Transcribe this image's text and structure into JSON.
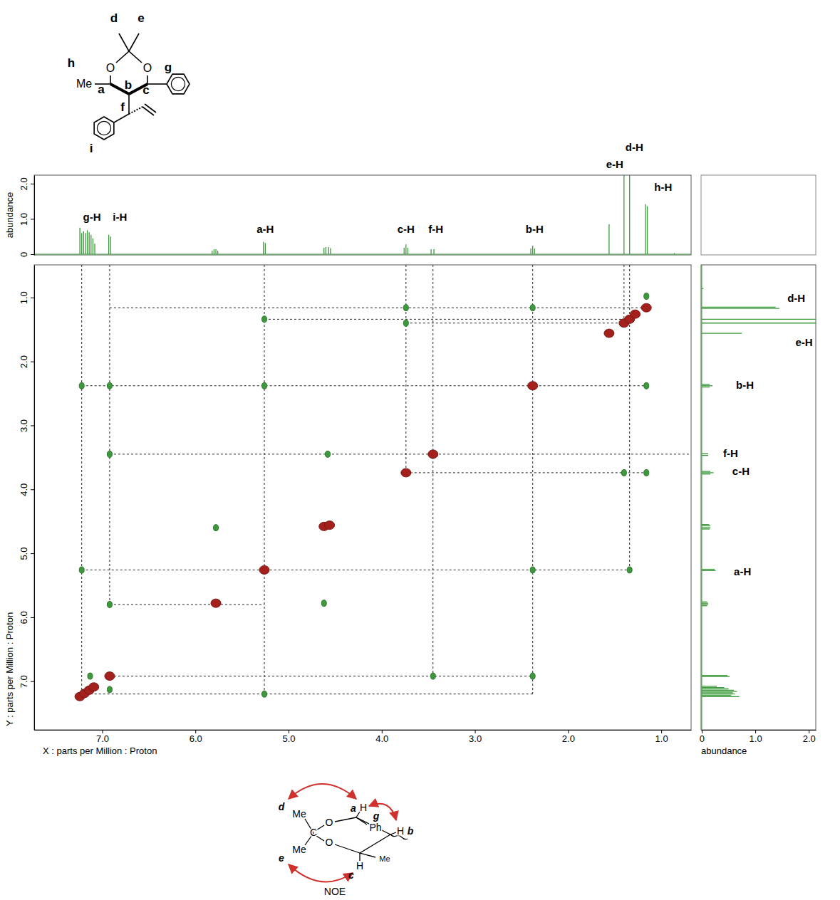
{
  "chart_data": [
    {
      "type": "spectrum",
      "ylabel": "abundance",
      "tick_labels": "y",
      "color": "#3c9a3c",
      "xlim": [
        7.73,
        0.68
      ],
      "ylim": [
        -0.02,
        2.24
      ],
      "yticks": [
        0,
        {
          "value": 1,
          "label": "1.0"
        },
        {
          "value": 2,
          "label": "2.0"
        }
      ],
      "x": [
        7.24,
        7.22,
        7.2,
        7.18,
        7.16,
        7.14,
        7.12,
        7.1,
        7.08,
        6.93,
        6.91,
        5.82,
        5.8,
        5.78,
        5.76,
        5.27,
        5.25,
        4.62,
        4.6,
        4.57,
        4.55,
        3.76,
        3.74,
        3.72,
        3.47,
        3.44,
        2.4,
        2.38,
        2.36,
        1.56,
        1.4,
        1.34,
        1.17,
        1.15,
        0.86
      ],
      "values": [
        0.75,
        0.6,
        0.65,
        0.6,
        0.68,
        0.62,
        0.55,
        0.45,
        0.3,
        0.55,
        0.5,
        0.1,
        0.14,
        0.14,
        0.1,
        0.35,
        0.32,
        0.18,
        0.2,
        0.2,
        0.17,
        0.18,
        0.28,
        0.18,
        0.14,
        0.14,
        0.16,
        0.24,
        0.16,
        0.85,
        2.24,
        2.24,
        1.42,
        1.36,
        0.03
      ],
      "annotations": [
        {
          "text": "g-H",
          "x": 7.11,
          "y": 0.95
        },
        {
          "text": "i-H",
          "x": 6.81,
          "y": 0.95
        },
        {
          "text": "a-H",
          "x": 5.25,
          "y": 0.6
        },
        {
          "text": "c-H",
          "x": 3.74,
          "y": 0.6
        },
        {
          "text": "f-H",
          "x": 3.42,
          "y": 0.6
        },
        {
          "text": "b-H",
          "x": 2.36,
          "y": 0.6
        },
        {
          "text": "e-H",
          "x": 1.5,
          "y": 2.44
        },
        {
          "text": "d-H",
          "x": 1.29,
          "y": 2.93
        },
        {
          "text": "h-H",
          "x": 0.98,
          "y": 1.8
        }
      ]
    },
    {
      "type": "scatter",
      "marker": "ellipse",
      "xlabel": "X : parts per Million : Proton",
      "ylabel": "Y : parts per Million : Proton",
      "xlim": [
        7.73,
        0.68
      ],
      "ylim": [
        0.49,
        7.76
      ],
      "xticks": [
        {
          "value": 7,
          "label": "7.0"
        },
        {
          "value": 6,
          "label": "6.0"
        },
        {
          "value": 5,
          "label": "5.0"
        },
        {
          "value": 4,
          "label": "4.0"
        },
        {
          "value": 3,
          "label": "3.0"
        },
        {
          "value": 2,
          "label": "2.0"
        },
        {
          "value": 1,
          "label": "1.0"
        }
      ],
      "yticks": [
        {
          "value": 1,
          "label": "1.0"
        },
        {
          "value": 2,
          "label": "2.0"
        },
        {
          "value": 3,
          "label": "3.0"
        },
        {
          "value": 4,
          "label": "4.0"
        },
        {
          "value": 5,
          "label": "5.0"
        },
        {
          "value": 6,
          "label": "6.0"
        },
        {
          "value": 7,
          "label": "7.0"
        }
      ],
      "series": [
        {
          "color": "#a3201c",
          "x": [
            7.24,
            7.19,
            7.14,
            7.09,
            6.92,
            5.78,
            5.26,
            4.62,
            4.56,
            3.74,
            3.45,
            2.38,
            1.56,
            1.4,
            1.34,
            1.28,
            1.16
          ],
          "values": [
            7.24,
            7.19,
            7.14,
            7.09,
            6.92,
            5.78,
            5.26,
            4.58,
            4.56,
            3.74,
            3.45,
            2.38,
            1.56,
            1.4,
            1.34,
            1.26,
            1.16
          ]
        },
        {
          "color": "#3c9a3c",
          "x": [
            7.22,
            7.22,
            6.92,
            6.92,
            6.92,
            7.13,
            6.92,
            5.26,
            5.26,
            5.26,
            4.58,
            5.78,
            4.62,
            3.74,
            3.74,
            3.45,
            2.38,
            2.38,
            2.38,
            1.4,
            1.34,
            1.16,
            1.16,
            1.16
          ],
          "values": [
            2.38,
            5.26,
            2.38,
            3.45,
            5.8,
            6.92,
            7.13,
            1.34,
            2.38,
            7.2,
            3.45,
            4.6,
            5.78,
            1.16,
            1.4,
            6.92,
            1.16,
            5.26,
            6.92,
            3.74,
            5.26,
            2.38,
            3.74,
            0.98
          ]
        }
      ],
      "guide_lines": [
        {
          "x": [
            7.22,
            7.22
          ],
          "y": [
            0.49,
            7.2
          ]
        },
        {
          "x": [
            6.92,
            6.92
          ],
          "y": [
            0.49,
            5.8
          ]
        },
        {
          "x": [
            5.26,
            5.26
          ],
          "y": [
            0.49,
            7.2
          ]
        },
        {
          "x": [
            3.74,
            3.74
          ],
          "y": [
            0.49,
            3.74
          ]
        },
        {
          "x": [
            3.45,
            3.45
          ],
          "y": [
            0.49,
            6.92
          ]
        },
        {
          "x": [
            2.38,
            2.38
          ],
          "y": [
            0.49,
            7.2
          ]
        },
        {
          "x": [
            1.4,
            1.4
          ],
          "y": [
            0.49,
            1.4
          ]
        },
        {
          "x": [
            1.34,
            1.34
          ],
          "y": [
            0.49,
            5.26
          ]
        },
        {
          "x": [
            6.92,
            1.16
          ],
          "y": [
            1.16,
            1.16
          ]
        },
        {
          "x": [
            5.26,
            1.34
          ],
          "y": [
            1.34,
            1.34
          ]
        },
        {
          "x": [
            3.74,
            1.4
          ],
          "y": [
            1.4,
            1.4
          ]
        },
        {
          "x": [
            7.22,
            1.16
          ],
          "y": [
            2.38,
            2.38
          ]
        },
        {
          "x": [
            6.92,
            0.68
          ],
          "y": [
            3.45,
            3.45
          ]
        },
        {
          "x": [
            3.74,
            1.16
          ],
          "y": [
            3.74,
            3.74
          ]
        },
        {
          "x": [
            7.22,
            1.34
          ],
          "y": [
            5.26,
            5.26
          ]
        },
        {
          "x": [
            6.92,
            5.26
          ],
          "y": [
            5.8,
            5.8
          ]
        },
        {
          "x": [
            6.92,
            2.38
          ],
          "y": [
            6.92,
            6.92
          ]
        },
        {
          "x": [
            7.22,
            2.38
          ],
          "y": [
            7.2,
            7.2
          ]
        }
      ]
    },
    {
      "type": "spectrum",
      "orientation": "horizontal",
      "xlabel": "abundance",
      "tick_labels": "x",
      "color": "#3c9a3c",
      "xlim": [
        -0.013,
        2.13
      ],
      "ylim": [
        0.49,
        7.76
      ],
      "xticks": [
        0,
        {
          "value": 1,
          "label": "1.0"
        },
        {
          "value": 2,
          "label": "2.0"
        }
      ],
      "y": [
        7.24,
        7.22,
        7.2,
        7.18,
        7.16,
        7.14,
        7.12,
        7.1,
        7.08,
        6.93,
        6.91,
        5.82,
        5.8,
        5.78,
        5.76,
        5.27,
        5.25,
        4.62,
        4.6,
        4.57,
        4.55,
        3.76,
        3.74,
        3.72,
        3.47,
        3.44,
        2.4,
        2.38,
        2.36,
        1.56,
        1.4,
        1.34,
        1.17,
        1.15,
        0.86
      ],
      "values": [
        0.7,
        0.55,
        0.62,
        0.58,
        0.66,
        0.6,
        0.5,
        0.42,
        0.28,
        0.52,
        0.48,
        0.1,
        0.12,
        0.12,
        0.1,
        0.26,
        0.24,
        0.15,
        0.16,
        0.16,
        0.14,
        0.16,
        0.22,
        0.16,
        0.12,
        0.12,
        0.15,
        0.2,
        0.15,
        0.75,
        2.13,
        2.13,
        1.45,
        1.38,
        0.03
      ],
      "annotations": [
        {
          "text": "d-H",
          "y": 1.02,
          "x": 1.6
        },
        {
          "text": "e-H",
          "y": 1.72,
          "x": 1.75
        },
        {
          "text": "b-H",
          "y": 2.38,
          "x": 0.64
        },
        {
          "text": "f-H",
          "y": 3.45,
          "x": 0.4
        },
        {
          "text": "c-H",
          "y": 3.73,
          "x": 0.57
        },
        {
          "text": "a-H",
          "y": 5.3,
          "x": 0.6
        }
      ]
    }
  ],
  "structure": {
    "labels": [
      "d",
      "e",
      "h",
      "O",
      "O",
      "Me",
      "a",
      "b",
      "c",
      "g",
      "f",
      "i"
    ]
  },
  "noe_diagram": {
    "labels": [
      "d",
      "Me",
      "e",
      "Me",
      "C",
      "O",
      "O",
      "a",
      "H",
      "g",
      "Ph",
      "H",
      "b",
      "H",
      "c",
      "Me",
      "NOE"
    ]
  }
}
